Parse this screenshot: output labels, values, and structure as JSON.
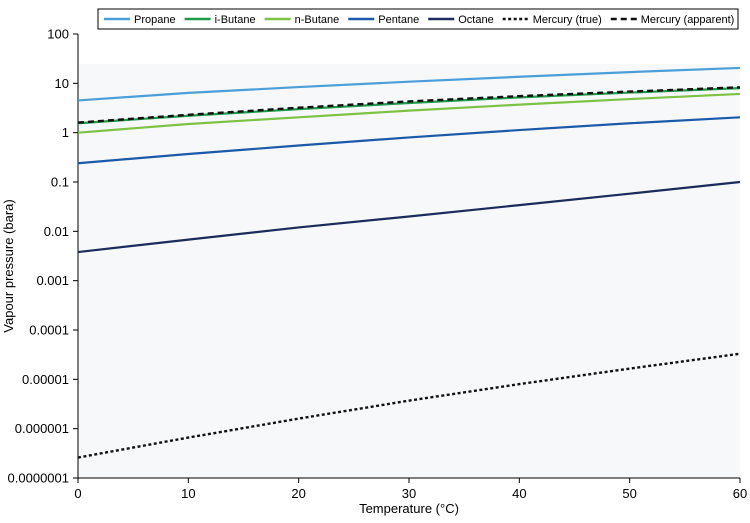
{
  "chart_data": {
    "type": "line",
    "xlabel": "Temperature (°C)",
    "ylabel": "Vapour pressure (bara)",
    "x_scale": "linear",
    "y_scale": "log",
    "xlim": [
      0,
      60
    ],
    "ylim": [
      1e-07,
      100
    ],
    "x_ticks": [
      "0",
      "10",
      "20",
      "30",
      "40",
      "50",
      "60"
    ],
    "y_ticks": [
      "0.0000001",
      "0.000001",
      "0.00001",
      "0.0001",
      "0.001",
      "0.01",
      "0.1",
      "1",
      "10",
      "100"
    ],
    "grid": false,
    "legend_position": "top",
    "x": [
      0,
      10,
      20,
      30,
      40,
      50,
      60
    ],
    "series": [
      {
        "name": "Propane",
        "color": "#4a9fd8",
        "dash": "solid",
        "values": [
          4.5,
          6.4,
          8.4,
          10.8,
          13.6,
          16.9,
          20.5
        ]
      },
      {
        "name": "i-Butane",
        "color": "#1e9a4a",
        "dash": "solid",
        "values": [
          1.55,
          2.2,
          3.0,
          4.0,
          5.2,
          6.5,
          8.0
        ]
      },
      {
        "name": "n-Butane",
        "color": "#7cc243",
        "dash": "solid",
        "values": [
          1.0,
          1.5,
          2.05,
          2.8,
          3.7,
          4.8,
          6.1
        ]
      },
      {
        "name": "Pentane",
        "color": "#1a5aa8",
        "dash": "solid",
        "values": [
          0.24,
          0.37,
          0.55,
          0.8,
          1.13,
          1.55,
          2.05
        ]
      },
      {
        "name": "Octane",
        "color": "#1c2b5a",
        "dash": "solid",
        "values": [
          0.0038,
          0.0068,
          0.012,
          0.02,
          0.034,
          0.058,
          0.1
        ]
      },
      {
        "name": "Mercury (true)",
        "color": "#111111",
        "dash": "dotted",
        "values": [
          2.6e-07,
          6.6e-07,
          1.6e-06,
          3.7e-06,
          8e-06,
          1.65e-05,
          3.3e-05
        ]
      },
      {
        "name": "Mercury (apparent)",
        "color": "#111111",
        "dash": "dashed",
        "values": [
          1.6,
          2.3,
          3.2,
          4.3,
          5.5,
          6.8,
          8.3
        ]
      }
    ]
  }
}
